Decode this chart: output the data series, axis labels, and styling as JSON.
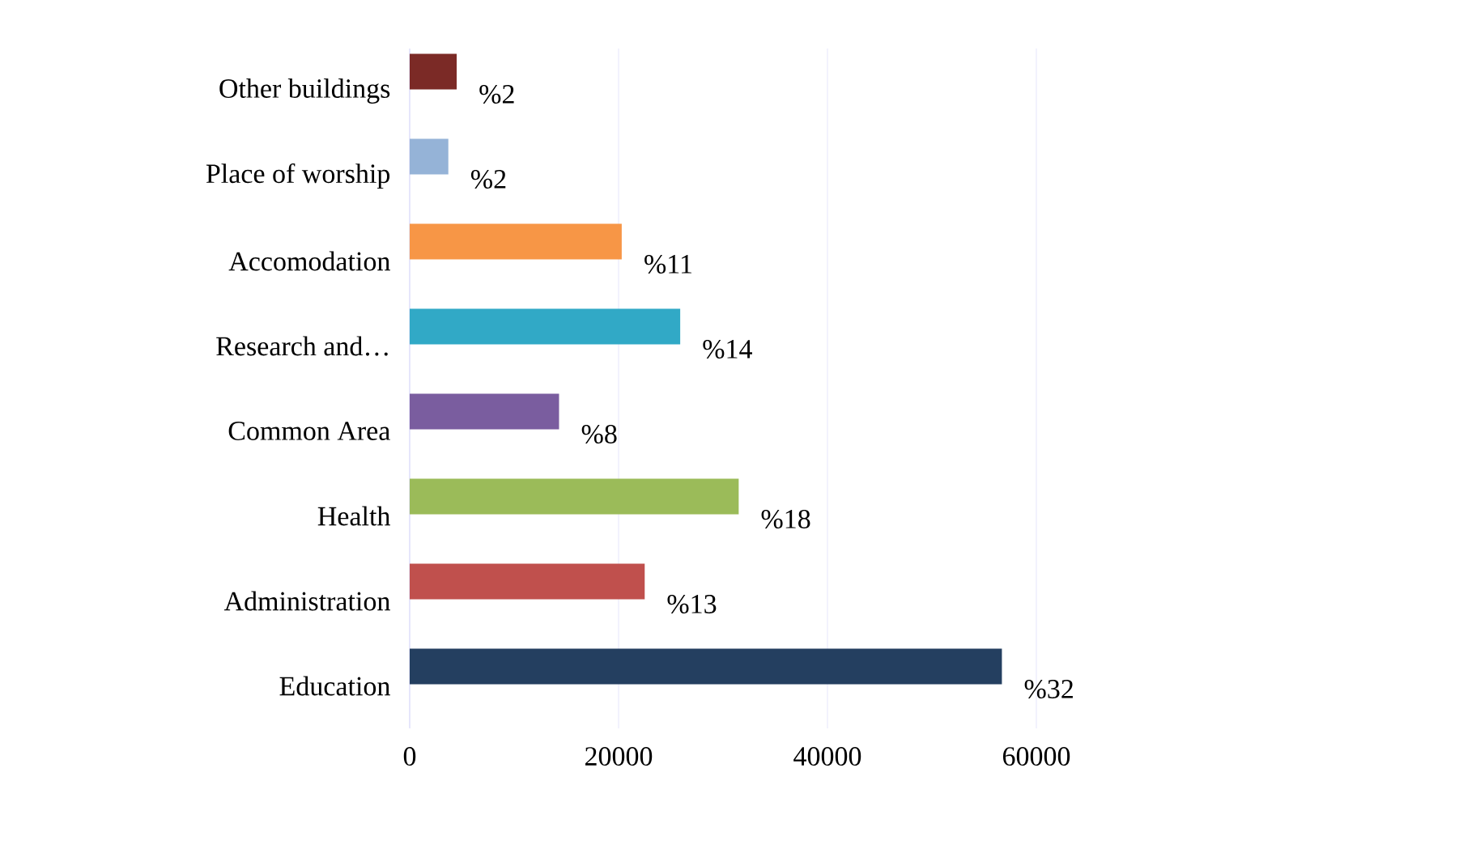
{
  "chart_data": {
    "type": "bar",
    "orientation": "horizontal",
    "categories": [
      "Other buildings",
      "Place of worship",
      "Accomodation",
      "Research and…",
      "Common Area",
      "Health",
      "Administration",
      "Education"
    ],
    "values": [
      4500,
      3700,
      20300,
      25900,
      14300,
      31500,
      22500,
      56700
    ],
    "colors": [
      "#7b2a26",
      "#95b3d7",
      "#f79646",
      "#31a9c6",
      "#7a5d9f",
      "#9bbb59",
      "#c0504d",
      "#243f60"
    ],
    "annotations": [
      {
        "text": "%2",
        "x": 4500,
        "y": "Other buildings"
      },
      {
        "text": "%2",
        "x": 3700,
        "y": "Place of worship"
      },
      {
        "text": "%11",
        "x": 20300,
        "y": "Accomodation"
      },
      {
        "text": "%14",
        "x": 25900,
        "y": "Research and…"
      },
      {
        "text": "%8",
        "x": 14300,
        "y": "Common Area"
      },
      {
        "text": "%18",
        "x": 31500,
        "y": "Health"
      },
      {
        "text": "%13",
        "x": 22500,
        "y": "Administration"
      },
      {
        "text": "%32",
        "x": 56700,
        "y": "Education"
      }
    ],
    "xlim": [
      0,
      60000
    ],
    "xticks": [
      0,
      20000,
      40000,
      60000
    ],
    "grid": "x"
  }
}
